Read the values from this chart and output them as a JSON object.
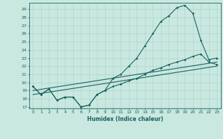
{
  "xlabel": "Humidex (Indice chaleur)",
  "x_ticks": [
    0,
    1,
    2,
    3,
    4,
    5,
    6,
    7,
    8,
    9,
    10,
    11,
    12,
    13,
    14,
    15,
    16,
    17,
    18,
    19,
    20,
    21,
    22,
    23
  ],
  "y_ticks": [
    17,
    18,
    19,
    20,
    21,
    22,
    23,
    24,
    25,
    26,
    27,
    28,
    29
  ],
  "xlim": [
    -0.5,
    23.5
  ],
  "ylim": [
    16.8,
    29.8
  ],
  "background_color": "#c8e8e0",
  "grid_color": "#b0d4cc",
  "line_color": "#1a6060",
  "line1_y": [
    19.5,
    18.5,
    19.2,
    17.8,
    18.2,
    18.2,
    17.0,
    17.2,
    18.5,
    19.0,
    20.5,
    21.0,
    22.0,
    23.0,
    24.5,
    26.0,
    27.5,
    28.2,
    29.2,
    29.5,
    28.5,
    25.2,
    22.8,
    23.0
  ],
  "line2_y": [
    19.5,
    18.5,
    19.2,
    17.8,
    18.2,
    18.2,
    17.0,
    17.2,
    18.5,
    19.0,
    19.5,
    19.8,
    20.2,
    20.5,
    21.0,
    21.5,
    21.8,
    22.2,
    22.5,
    22.8,
    23.2,
    23.5,
    22.5,
    22.2
  ],
  "line3_y": [
    19.0,
    22.5
  ],
  "line4_y": [
    18.5,
    22.0
  ]
}
